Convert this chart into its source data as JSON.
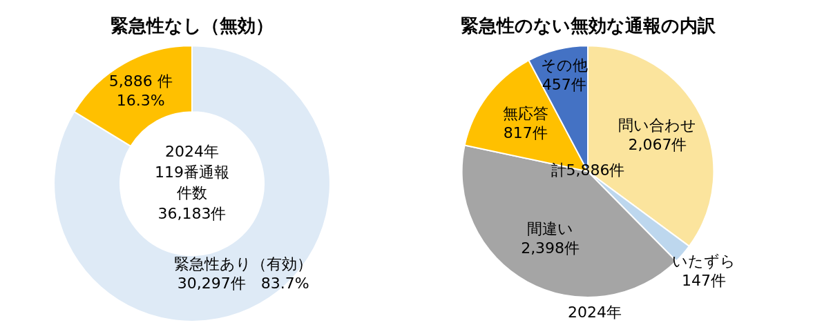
{
  "chart_data": [
    {
      "type": "donut",
      "title": "緊急性なし（無効）",
      "categories": [
        "緊急性あり（有効）",
        null
      ],
      "values": [
        30297,
        5886
      ],
      "colors": [
        "#deeaf6",
        "#ffc000"
      ],
      "value_labels": [
        "30,297件　83.7%",
        "5,886 件\n16.3%"
      ],
      "annotations": [
        "2024年",
        "119番通報",
        "件数",
        "36,183件"
      ],
      "legend": false
    },
    {
      "type": "pie",
      "title": "緊急性のない無効な通報の内訳",
      "categories": [
        "問い合わせ",
        "いたずら",
        "間違い",
        "無応答",
        "その他"
      ],
      "values": [
        2067,
        147,
        2398,
        817,
        457
      ],
      "colors": [
        "#fbe49d",
        "#bdd7ee",
        "#a5a5a5",
        "#ffc000",
        "#4472c4"
      ],
      "value_labels": [
        "2,067件",
        "147件",
        "2,398件",
        "817件",
        "457件"
      ],
      "annotations": [
        "計5,886件",
        "2024年"
      ],
      "legend": false
    }
  ]
}
